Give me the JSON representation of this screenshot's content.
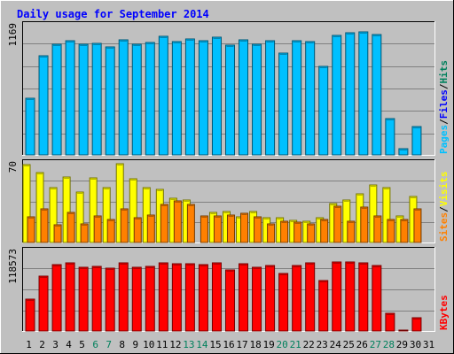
{
  "chart_data": {
    "type": "bar",
    "title": "Daily usage for September 2014",
    "days": [
      "1",
      "2",
      "3",
      "4",
      "5",
      "6",
      "7",
      "8",
      "9",
      "10",
      "11",
      "12",
      "13",
      "14",
      "15",
      "16",
      "17",
      "18",
      "19",
      "20",
      "21",
      "22",
      "23",
      "24",
      "25",
      "26",
      "27",
      "28",
      "29",
      "30",
      "31"
    ],
    "weekend_days": [
      "6",
      "7",
      "13",
      "14",
      "20",
      "21",
      "27",
      "28"
    ],
    "panels": [
      {
        "id": "traffic",
        "max_label": "1169",
        "max": 1169,
        "side_labels": [
          "Pages",
          "Files",
          "Hits"
        ],
        "series": [
          {
            "name": "Hits",
            "color": "#00805c",
            "values": [
              null,
              null,
              null,
              null,
              null,
              null,
              null,
              null,
              null,
              null,
              null,
              null,
              null,
              null,
              null,
              null,
              null,
              null,
              null,
              null,
              null,
              null,
              null,
              null,
              null,
              null,
              null,
              null,
              null,
              null,
              null
            ]
          },
          {
            "name": "Files",
            "color": "#0000ff",
            "values": [
              null,
              null,
              null,
              null,
              null,
              null,
              null,
              null,
              null,
              null,
              null,
              null,
              null,
              null,
              null,
              null,
              null,
              null,
              null,
              null,
              null,
              null,
              null,
              null,
              null,
              null,
              null,
              null,
              null,
              null,
              null
            ]
          },
          {
            "name": "Pages",
            "color": "#00c0ff",
            "values": [
              520,
              900,
              1010,
              1040,
              1010,
              1015,
              985,
              1045,
              1005,
              1025,
              1080,
              1030,
              1060,
              1040,
              1070,
              1000,
              1050,
              1010,
              1040,
              930,
              1040,
              1030,
              810,
              1085,
              1110,
              1120,
              1100,
              330,
              55,
              260,
              null
            ]
          }
        ]
      },
      {
        "id": "visits",
        "max_label": "70",
        "max": 70,
        "side_labels": [
          "Sites",
          "Visits"
        ],
        "series": [
          {
            "name": "Visits",
            "color": "#ffff00",
            "values": [
              70,
              63,
              49,
              59,
              45,
              58,
              49,
              71,
              57,
              49,
              48,
              40,
              38,
              null,
              27,
              28,
              23,
              28,
              22,
              22,
              20,
              19,
              22,
              35,
              38,
              44,
              52,
              49,
              24,
              41,
              null
            ]
          },
          {
            "name": "Sites",
            "color": "#ff8000",
            "values": [
              23,
              30,
              16,
              27,
              17,
              24,
              21,
              30,
              22,
              25,
              34,
              37,
              34,
              24,
              24,
              25,
              26,
              23,
              17,
              19,
              18,
              17,
              21,
              33,
              19,
              32,
              24,
              21,
              21,
              30,
              null
            ]
          }
        ]
      },
      {
        "id": "kbytes",
        "max_label": "118573",
        "max": 118573,
        "side_labels": [
          "KBytes"
        ],
        "series": [
          {
            "name": "KBytes",
            "color": "#ff0000",
            "values": [
              48000,
              82000,
              100000,
              102000,
              96000,
              97000,
              95000,
              102000,
              96000,
              97000,
              102000,
              101000,
              101000,
              100000,
              103000,
              92000,
              101000,
              96000,
              99000,
              86000,
              99000,
              102000,
              76000,
              104000,
              104000,
              103000,
              98000,
              27000,
              1200,
              20000,
              null
            ]
          }
        ]
      }
    ]
  }
}
